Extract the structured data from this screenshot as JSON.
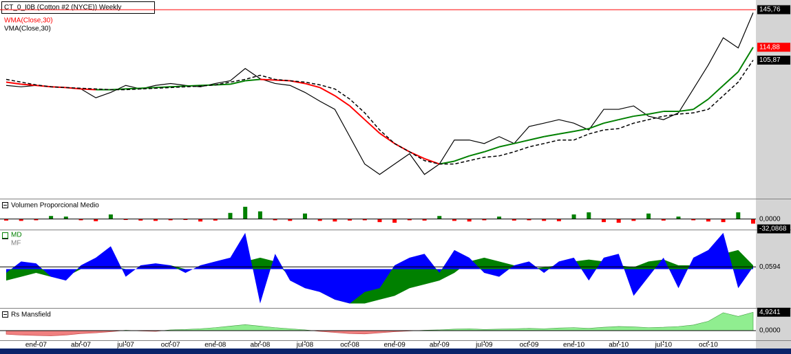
{
  "chart_data": [
    {
      "type": "line",
      "title": "CT_0_I0B (Cotton #2 (NYCE)) Weekly",
      "log_scale": true,
      "ylim": [
        44,
        155
      ],
      "yticks": [
        {
          "value": 145.76,
          "label": "145,76"
        },
        {
          "value": 114.88,
          "label": "114,88"
        },
        {
          "value": 105.87,
          "label": "105,87"
        }
      ],
      "ytick_colors": [
        "#000000",
        "#ff0000",
        "#000000"
      ],
      "ytick_lines": [
        "#ff0000",
        null,
        null
      ],
      "series": [
        {
          "color": "#000000",
          "values": [
            90.2,
            89.4,
            90.2,
            89.4,
            89.0,
            88.2,
            83.4,
            86.3,
            90.2,
            88.2,
            90.2,
            91.3,
            90.2,
            89.4,
            91.3,
            92.9,
            100.4,
            94.1,
            91.3,
            90.2,
            86.3,
            81.6,
            77.5,
            65.2,
            54.8,
            51.3,
            54.8,
            58.5,
            51.3,
            54.8,
            63.8,
            63.8,
            62.4,
            65.2,
            62.4,
            69.5,
            71.0,
            72.6,
            71.0,
            68.0,
            77.5,
            77.5,
            79.2,
            74.2,
            72.6,
            75.8,
            88.2,
            102.7,
            122.0,
            114.4,
            143.0
          ]
        },
        {
          "name": "WMA(Close,30)",
          "color": "#ff0000",
          "up_color": "#008000",
          "values": [
            92.1,
            90.9,
            90.2,
            89.4,
            89.0,
            88.2,
            87.8,
            87.8,
            88.2,
            88.6,
            89.0,
            89.4,
            89.8,
            90.2,
            90.5,
            90.9,
            92.9,
            93.7,
            93.3,
            92.9,
            91.3,
            89.0,
            84.5,
            79.2,
            72.6,
            66.6,
            62.4,
            59.2,
            56.7,
            54.8,
            55.8,
            57.7,
            59.2,
            61.1,
            62.4,
            63.8,
            65.2,
            66.3,
            67.4,
            68.6,
            71.0,
            72.6,
            74.2,
            75.2,
            76.5,
            76.5,
            77.5,
            82.7,
            90.2,
            98.3,
            114.88
          ]
        },
        {
          "name": "VMA(Close,30)",
          "color": "#000000",
          "dash": true,
          "values": [
            93.7,
            92.1,
            90.5,
            89.4,
            89.0,
            88.6,
            88.2,
            87.8,
            87.8,
            88.2,
            88.6,
            89.0,
            89.4,
            89.8,
            90.5,
            92.1,
            93.7,
            96.2,
            93.7,
            92.9,
            92.1,
            90.5,
            88.2,
            82.7,
            75.8,
            68.0,
            62.4,
            59.2,
            56.0,
            54.8,
            54.8,
            56.0,
            57.2,
            57.7,
            59.2,
            61.1,
            62.4,
            63.8,
            63.8,
            66.3,
            68.0,
            68.6,
            71.0,
            72.6,
            74.2,
            75.2,
            75.8,
            77.5,
            84.5,
            92.1,
            105.87
          ]
        }
      ]
    },
    {
      "type": "bar",
      "title": "Volumen Proporcional Medio",
      "ylim": [
        -32.0868,
        62
      ],
      "yticks": [
        {
          "value": 0,
          "label": "0,0000"
        },
        {
          "value": -32.0868,
          "label": "-32,0868"
        }
      ],
      "ytick_colors": [
        "#d4d4d4",
        "#000000"
      ],
      "ytick_lines": [
        "#000000",
        null
      ],
      "up_color": "#008000",
      "down_color": "#ff0000",
      "values": [
        -5,
        -6,
        -4,
        10,
        8,
        -4,
        -7,
        15,
        -3,
        -5,
        -6,
        -4,
        -3,
        -8,
        -5,
        20,
        40,
        25,
        -4,
        -6,
        18,
        -6,
        -8,
        -5,
        -4,
        -10,
        -12,
        -4,
        -5,
        10,
        -6,
        -8,
        -4,
        8,
        -5,
        -4,
        -6,
        -7,
        15,
        22,
        -10,
        -12,
        -6,
        18,
        -5,
        8,
        -4,
        -8,
        -10,
        22,
        -15
      ]
    },
    {
      "type": "area",
      "ylim": [
        -1,
        1
      ],
      "yticks": [
        {
          "value": 0.0594,
          "label": "0,0594"
        }
      ],
      "ytick_colors": [
        "#d4d4d4"
      ],
      "ytick_lines": [
        "#000000"
      ],
      "series": [
        {
          "name": "MD",
          "color": "#0000ff",
          "values": [
            -0.1,
            0.2,
            0.15,
            -0.2,
            -0.3,
            0.1,
            0.3,
            0.6,
            -0.2,
            0.1,
            0.15,
            0.1,
            -0.1,
            0.1,
            0.2,
            0.3,
            0.95,
            -0.9,
            0.4,
            -0.3,
            -0.5,
            -0.6,
            -0.8,
            -0.9,
            -0.6,
            -0.5,
            0.1,
            0.3,
            0.4,
            -0.1,
            0.5,
            0.3,
            -0.1,
            -0.2,
            0.1,
            0.2,
            -0.1,
            0.2,
            0.3,
            -0.3,
            0.3,
            0.4,
            -0.7,
            -0.2,
            0.3,
            -0.5,
            0.3,
            0.5,
            0.95,
            -0.5,
            0.06
          ]
        },
        {
          "name": "MF",
          "color": "#008000",
          "values": [
            -0.3,
            -0.2,
            -0.1,
            -0.2,
            -0.2,
            0.0,
            0.1,
            0.1,
            0.0,
            0.0,
            0.1,
            0.1,
            0.0,
            0.0,
            0.05,
            0.1,
            0.2,
            0.3,
            0.2,
            -0.2,
            -0.4,
            -0.6,
            -0.8,
            -0.9,
            -0.9,
            -0.8,
            -0.7,
            -0.5,
            -0.4,
            -0.3,
            -0.1,
            0.2,
            0.3,
            0.2,
            0.1,
            0.0,
            0.05,
            0.1,
            0.2,
            0.25,
            0.2,
            0.1,
            0.05,
            0.2,
            0.25,
            0.1,
            0.1,
            0.2,
            0.4,
            0.5,
            0.1
          ]
        }
      ]
    },
    {
      "type": "area",
      "title": "Rs Mansfield",
      "categories": [
        null,
        null,
        "ene-07",
        null,
        null,
        "abr-07",
        null,
        null,
        "jul-07",
        null,
        null,
        "oct-07",
        null,
        null,
        "ene-08",
        null,
        null,
        "abr-08",
        null,
        null,
        "jul-08",
        null,
        null,
        "oct-08",
        null,
        null,
        "ene-09",
        null,
        null,
        "abr-09",
        null,
        null,
        "jul-09",
        null,
        null,
        "oct-09",
        null,
        null,
        "ene-10",
        null,
        null,
        "abr-10",
        null,
        null,
        "jul-10",
        null,
        null,
        "oct-10",
        null,
        null,
        null
      ],
      "ylim": [
        -2.4,
        5.7
      ],
      "yticks": [
        {
          "value": 4.9241,
          "label": "4,9241"
        },
        {
          "value": 0,
          "label": "0,0000"
        }
      ],
      "ytick_colors": [
        "#000000",
        "#d4d4d4"
      ],
      "ytick_lines": [
        null,
        "#000000"
      ],
      "up_color": "#90ee90",
      "down_color": "#f08080",
      "values": [
        -1.0,
        -1.2,
        -1.3,
        -1.4,
        -1.2,
        -0.8,
        -0.6,
        -0.3,
        0.1,
        -0.1,
        -0.2,
        0.2,
        0.3,
        0.5,
        0.8,
        1.2,
        1.6,
        1.2,
        0.8,
        0.5,
        0.2,
        -0.2,
        -0.5,
        -0.8,
        -0.9,
        -0.6,
        -0.3,
        -0.1,
        0.1,
        0.2,
        0.4,
        0.5,
        0.3,
        0.4,
        0.5,
        0.6,
        0.5,
        0.7,
        0.8,
        0.6,
        0.9,
        1.1,
        1.0,
        0.8,
        0.9,
        1.1,
        1.5,
        2.5,
        4.8,
        3.8,
        4.9241
      ]
    }
  ]
}
